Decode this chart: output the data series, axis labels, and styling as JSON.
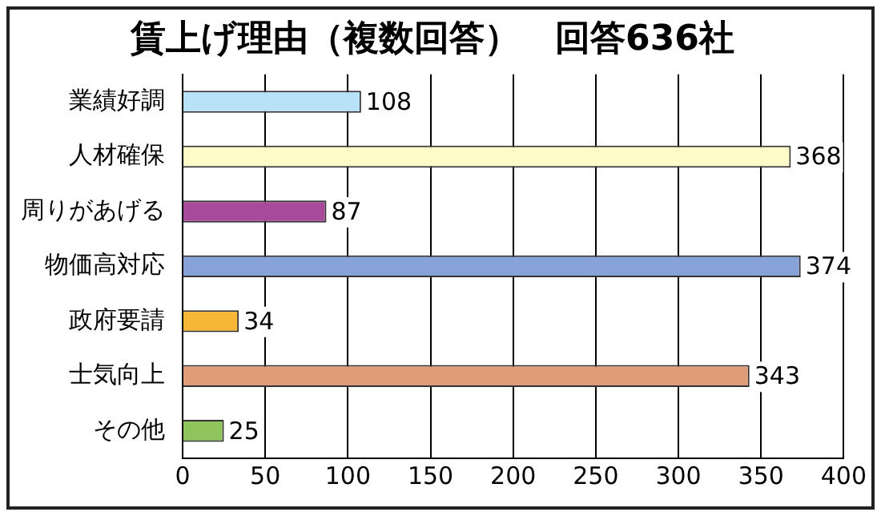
{
  "chart_data": {
    "type": "bar",
    "orientation": "horizontal",
    "title": "賃上げ理由（複数回答）　回答636社",
    "categories": [
      "業績好調",
      "人材確保",
      "周りがあげる",
      "物価高対応",
      "政府要請",
      "士気向上",
      "その他"
    ],
    "values": [
      108,
      368,
      87,
      374,
      34,
      343,
      25
    ],
    "colors": [
      "#b8e2f8",
      "#fdfbc8",
      "#a84a9c",
      "#86a2d6",
      "#f7b634",
      "#de9c78",
      "#8fc45c"
    ],
    "xlim": [
      0,
      400
    ],
    "xticks": [
      0,
      50,
      100,
      150,
      200,
      250,
      300,
      350,
      400
    ],
    "grid": "x",
    "data_labels": true
  }
}
